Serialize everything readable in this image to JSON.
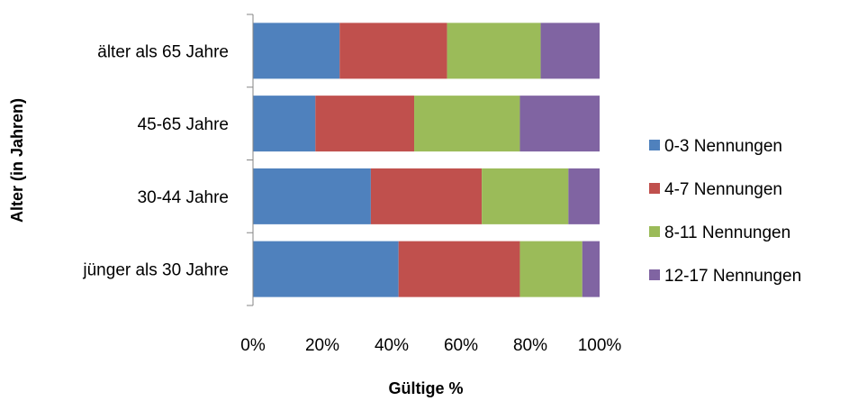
{
  "chart_data": {
    "type": "bar",
    "orientation": "horizontal",
    "stacked": "percent",
    "categories": [
      "jünger als 30 Jahre",
      "30-44 Jahre",
      "45-65 Jahre",
      "älter als 65 Jahre"
    ],
    "series": [
      {
        "name": "0-3 Nennungen",
        "color": "#4F81BD",
        "values": [
          42,
          34,
          18,
          25
        ]
      },
      {
        "name": "4-7 Nennungen",
        "color": "#C0504D",
        "values": [
          35,
          32,
          28.5,
          31
        ]
      },
      {
        "name": "8-11 Nennungen",
        "color": "#9BBB59",
        "values": [
          18,
          25,
          30.5,
          27
        ]
      },
      {
        "name": "12-17 Nennungen",
        "color": "#8064A2",
        "values": [
          5,
          9,
          23,
          17
        ]
      }
    ],
    "xlabel": "Gültige %",
    "ylabel": "Alter (in Jahren)",
    "xlim": [
      0,
      100
    ],
    "xticks": [
      "0%",
      "20%",
      "40%",
      "60%",
      "80%",
      "100%"
    ],
    "grid": false,
    "legend": "right"
  }
}
